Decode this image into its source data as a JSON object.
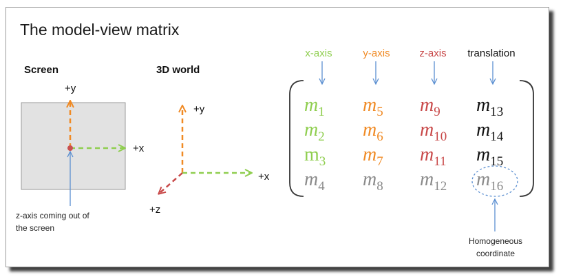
{
  "title": "The model-view matrix",
  "screen_panel": {
    "label": "Screen",
    "y_label": "+y",
    "x_label": "+x",
    "note_line1": "z-axis coming out of",
    "note_line2": "the screen"
  },
  "world_panel": {
    "label": "3D world",
    "y_label": "+y",
    "x_label": "+x",
    "z_label": "+z"
  },
  "matrix": {
    "column_headers": [
      "x-axis",
      "y-axis",
      "z-axis",
      "translation"
    ],
    "rows": [
      [
        {
          "base": "m",
          "sub": "1"
        },
        {
          "base": "m",
          "sub": "5"
        },
        {
          "base": "m",
          "sub": "9"
        },
        {
          "base": "m",
          "sub": "13"
        }
      ],
      [
        {
          "base": "m",
          "sub": "2"
        },
        {
          "base": "m",
          "sub": "6"
        },
        {
          "base": "m",
          "sub": "10"
        },
        {
          "base": "m",
          "sub": "14"
        }
      ],
      [
        {
          "base": "m",
          "sub": "3"
        },
        {
          "base": "m",
          "sub": "7"
        },
        {
          "base": "m",
          "sub": "11"
        },
        {
          "base": "m",
          "sub": "15"
        }
      ],
      [
        {
          "base": "m",
          "sub": "4"
        },
        {
          "base": "m",
          "sub": "8"
        },
        {
          "base": "m",
          "sub": "12"
        },
        {
          "base": "m",
          "sub": "16"
        }
      ]
    ],
    "homogeneous_line1": "Homogeneous",
    "homogeneous_line2": "coordinate"
  },
  "colors": {
    "x_axis": "#8fce4f",
    "y_axis": "#f08a24",
    "z_axis": "#c84848",
    "translation": "#111111",
    "homogeneous_row": "#8a8a8a",
    "pointer_arrow": "#5b8fd1",
    "screen_fill": "#e2e2e2",
    "origin_dot": "#c85050"
  }
}
